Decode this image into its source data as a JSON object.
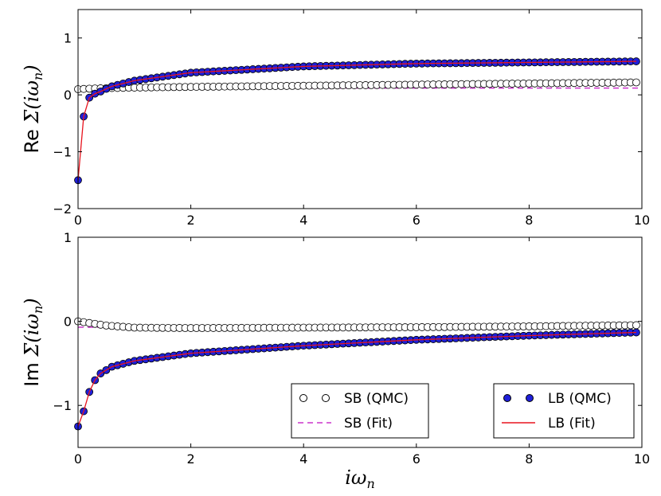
{
  "chart_data": [
    {
      "type": "scatter",
      "title": "",
      "ylabel_prefix": "Re",
      "ylabel_sym": "Σ",
      "ylabel_arg": "(iω",
      "ylabel_sub": "n",
      "ylabel_close": ")",
      "xlim": [
        0,
        10
      ],
      "ylim": [
        -2,
        1.5
      ],
      "xticks": [
        "0",
        "2",
        "4",
        "6",
        "8",
        "10"
      ],
      "xtick_values": [
        0,
        2,
        4,
        6,
        8,
        10
      ],
      "yticks": [
        "−2",
        "−1",
        "0",
        "1"
      ],
      "ytick_values": [
        -2,
        -1,
        0,
        1
      ],
      "series": [
        {
          "name": "SB (QMC)",
          "style": "open-circle",
          "color": "#000000",
          "x_start": 0.0,
          "x_step": 0.1,
          "n": 100,
          "model": {
            "kind": "sb_re",
            "a": 0.1,
            "b": 0.12,
            "k": 0.5
          }
        },
        {
          "name": "SB (Fit)",
          "style": "dashed-line",
          "color": "#cc33cc",
          "x": [
            0,
            10
          ],
          "values": [
            0.12,
            0.12
          ]
        },
        {
          "name": "LB (QMC)",
          "style": "filled-circle",
          "color": "#1f1fd9",
          "x_start": 0.0,
          "x_step": 0.1,
          "n": 100,
          "anchors": [
            [
              0.0,
              -1.5
            ],
            [
              0.1,
              -0.38
            ],
            [
              0.2,
              -0.05
            ],
            [
              0.3,
              0.02
            ],
            [
              0.4,
              0.06
            ],
            [
              0.6,
              0.15
            ],
            [
              1.0,
              0.25
            ],
            [
              2.0,
              0.39
            ],
            [
              4.0,
              0.5
            ],
            [
              6.0,
              0.55
            ],
            [
              8.0,
              0.57
            ],
            [
              10.0,
              0.59
            ]
          ]
        },
        {
          "name": "LB (Fit)",
          "style": "solid-line",
          "color": "#e8141e",
          "x_start": 0.0,
          "x_step": 0.1,
          "n": 100,
          "anchors": [
            [
              0.0,
              -1.5
            ],
            [
              0.1,
              -0.38
            ],
            [
              0.2,
              -0.05
            ],
            [
              0.3,
              0.02
            ],
            [
              0.4,
              0.06
            ],
            [
              0.6,
              0.15
            ],
            [
              1.0,
              0.25
            ],
            [
              2.0,
              0.39
            ],
            [
              4.0,
              0.5
            ],
            [
              6.0,
              0.55
            ],
            [
              8.0,
              0.57
            ],
            [
              10.0,
              0.59
            ]
          ]
        }
      ]
    },
    {
      "type": "scatter",
      "title": "",
      "ylabel_prefix": "Im",
      "ylabel_sym": "Σ",
      "ylabel_arg": "(iω",
      "ylabel_sub": "n",
      "ylabel_close": ")",
      "xlabel_main": "iω",
      "xlabel_sub": "n",
      "xlim": [
        0,
        10
      ],
      "ylim": [
        -1.5,
        1
      ],
      "xticks": [
        "0",
        "2",
        "4",
        "6",
        "8",
        "10"
      ],
      "xtick_values": [
        0,
        2,
        4,
        6,
        8,
        10
      ],
      "yticks": [
        "−1",
        "0",
        "1"
      ],
      "ytick_values": [
        -1,
        0,
        1
      ],
      "series": [
        {
          "name": "SB (QMC)",
          "style": "open-circle",
          "color": "#000000",
          "x_start": 0.0,
          "x_step": 0.1,
          "n": 100,
          "anchors": [
            [
              0.0,
              0.0
            ],
            [
              0.2,
              -0.02
            ],
            [
              0.5,
              -0.05
            ],
            [
              1.0,
              -0.075
            ],
            [
              2.0,
              -0.08
            ],
            [
              4.0,
              -0.075
            ],
            [
              6.0,
              -0.07
            ],
            [
              8.0,
              -0.06
            ],
            [
              10.0,
              -0.045
            ]
          ]
        },
        {
          "name": "SB (Fit)",
          "style": "dashed-line",
          "color": "#cc33cc",
          "x": [
            0,
            10
          ],
          "values": [
            -0.07,
            -0.07
          ]
        },
        {
          "name": "LB (QMC)",
          "style": "filled-circle",
          "color": "#1f1fd9",
          "x_start": 0.0,
          "x_step": 0.1,
          "n": 100,
          "anchors": [
            [
              0.0,
              -1.25
            ],
            [
              0.1,
              -1.07
            ],
            [
              0.2,
              -0.84
            ],
            [
              0.3,
              -0.7
            ],
            [
              0.4,
              -0.62
            ],
            [
              0.6,
              -0.54
            ],
            [
              1.0,
              -0.47
            ],
            [
              2.0,
              -0.38
            ],
            [
              4.0,
              -0.29
            ],
            [
              6.0,
              -0.22
            ],
            [
              8.0,
              -0.17
            ],
            [
              10.0,
              -0.13
            ]
          ]
        },
        {
          "name": "LB (Fit)",
          "style": "solid-line",
          "color": "#e8141e",
          "x_start": 0.0,
          "x_step": 0.1,
          "n": 100,
          "anchors": [
            [
              0.0,
              -1.25
            ],
            [
              0.1,
              -1.07
            ],
            [
              0.2,
              -0.84
            ],
            [
              0.3,
              -0.7
            ],
            [
              0.4,
              -0.62
            ],
            [
              0.6,
              -0.54
            ],
            [
              1.0,
              -0.47
            ],
            [
              2.0,
              -0.38
            ],
            [
              4.0,
              -0.29
            ],
            [
              6.0,
              -0.22
            ],
            [
              8.0,
              -0.17
            ],
            [
              10.0,
              -0.13
            ]
          ]
        }
      ],
      "legends": [
        {
          "position": "lower-center",
          "entries": [
            "SB (QMC)",
            "SB (Fit)"
          ]
        },
        {
          "position": "lower-right",
          "entries": [
            "LB (QMC)",
            "LB (Fit)"
          ]
        }
      ]
    }
  ]
}
